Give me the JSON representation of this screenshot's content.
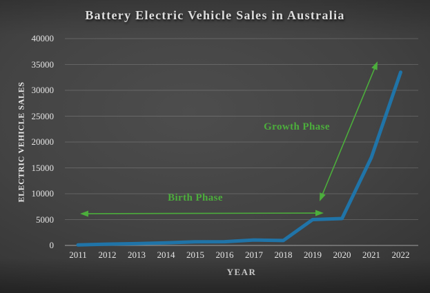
{
  "chart_data": {
    "type": "line",
    "title": "Battery Electric Vehicle Sales in Australia",
    "xlabel": "YEAR",
    "ylabel": "ELECTRIC VEHICLE SALES",
    "categories": [
      "2011",
      "2012",
      "2013",
      "2014",
      "2015",
      "2016",
      "2017",
      "2018",
      "2019",
      "2020",
      "2021",
      "2022"
    ],
    "series": [
      {
        "name": "Battery electric vehicle sales",
        "values": [
          100,
          250,
          350,
          500,
          700,
          720,
          1050,
          950,
          5000,
          5200,
          17000,
          33500
        ]
      }
    ],
    "ylim": [
      0,
      40000
    ],
    "yticks": [
      "0",
      "5000",
      "10000",
      "15000",
      "20000",
      "25000",
      "30000",
      "35000",
      "40000"
    ],
    "grid": true,
    "legend": "none",
    "line_color": "#2074A8",
    "annotations": [
      {
        "text": "Birth Phase",
        "color": "#4CAE3C",
        "shape": "horizontal-double-arrow"
      },
      {
        "text": "Growth Phase",
        "color": "#4CAE3C",
        "shape": "diagonal-double-arrow"
      }
    ]
  }
}
